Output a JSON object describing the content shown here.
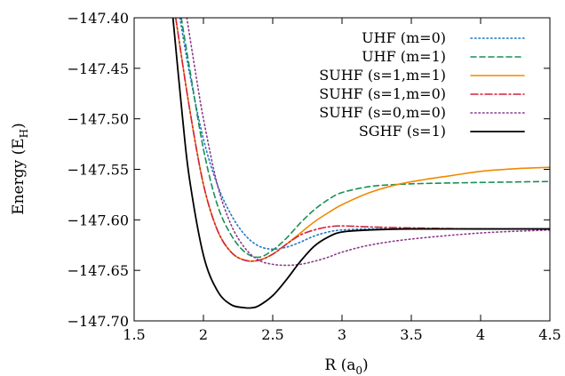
{
  "chart_data": {
    "type": "line",
    "xlabel": "R (a",
    "xlabel_sub": "0",
    "xlabel_tail": ")",
    "ylabel": "Energy (E",
    "ylabel_sub": "H",
    "ylabel_tail": ")",
    "xlim": [
      1.5,
      4.5
    ],
    "ylim": [
      -147.7,
      -147.4
    ],
    "x_ticks": [
      1.5,
      2,
      2.5,
      3,
      3.5,
      4,
      4.5
    ],
    "x_tick_labels": [
      "1.5",
      "2",
      "2.5",
      "3",
      "3.5",
      "4",
      "4.5"
    ],
    "y_ticks": [
      -147.7,
      -147.65,
      -147.6,
      -147.55,
      -147.5,
      -147.45,
      -147.4
    ],
    "y_tick_labels": [
      "−147.70",
      "−147.65",
      "−147.60",
      "−147.55",
      "−147.50",
      "−147.45",
      "−147.40"
    ],
    "grid": false,
    "legend_position": "top-right",
    "series": [
      {
        "name": "UHF (m=0)",
        "color": "#1f77c8",
        "dash": "dotted",
        "x": [
          1.83,
          1.9,
          2.0,
          2.1,
          2.2,
          2.3,
          2.4,
          2.5,
          2.6,
          2.7,
          2.8,
          2.9,
          3.0,
          3.2,
          3.5,
          4.0,
          4.5
        ],
        "y": [
          -147.4,
          -147.455,
          -147.52,
          -147.565,
          -147.595,
          -147.615,
          -147.626,
          -147.629,
          -147.627,
          -147.622,
          -147.616,
          -147.612,
          -147.61,
          -147.609,
          -147.609,
          -147.609,
          -147.609
        ]
      },
      {
        "name": "UHF (m=1)",
        "color": "#1a8f55",
        "dash": "dashed",
        "x": [
          1.84,
          1.9,
          2.0,
          2.1,
          2.2,
          2.3,
          2.4,
          2.5,
          2.6,
          2.7,
          2.8,
          2.9,
          3.0,
          3.2,
          3.4,
          3.6,
          4.0,
          4.5
        ],
        "y": [
          -147.4,
          -147.45,
          -147.53,
          -147.585,
          -147.615,
          -147.632,
          -147.637,
          -147.63,
          -147.618,
          -147.603,
          -147.59,
          -147.58,
          -147.573,
          -147.567,
          -147.565,
          -147.564,
          -147.563,
          -147.562
        ]
      },
      {
        "name": "SUHF (s=1,m=1)",
        "color": "#f08a00",
        "dash": "solid",
        "x": [
          1.8,
          1.9,
          2.0,
          2.1,
          2.2,
          2.3,
          2.4,
          2.5,
          2.6,
          2.7,
          2.8,
          2.9,
          3.0,
          3.2,
          3.4,
          3.6,
          3.8,
          4.0,
          4.3,
          4.5
        ],
        "y": [
          -147.4,
          -147.49,
          -147.565,
          -147.61,
          -147.632,
          -147.64,
          -147.64,
          -147.634,
          -147.624,
          -147.613,
          -147.602,
          -147.593,
          -147.585,
          -147.573,
          -147.565,
          -147.56,
          -147.556,
          -147.552,
          -147.549,
          -147.548
        ]
      },
      {
        "name": "SUHF (s=1,m=0)",
        "color": "#d1223f",
        "dash": "dashdot",
        "x": [
          1.8,
          1.9,
          2.0,
          2.1,
          2.2,
          2.3,
          2.4,
          2.5,
          2.6,
          2.7,
          2.8,
          2.9,
          3.0,
          3.2,
          3.5,
          4.0,
          4.5
        ],
        "y": [
          -147.4,
          -147.49,
          -147.565,
          -147.61,
          -147.632,
          -147.64,
          -147.64,
          -147.634,
          -147.624,
          -147.615,
          -147.61,
          -147.607,
          -147.606,
          -147.607,
          -147.608,
          -147.609,
          -147.609
        ]
      },
      {
        "name": "SUHF (s=0,m=0)",
        "color": "#8a3a8a",
        "dash": "dotted",
        "x": [
          1.88,
          1.95,
          2.0,
          2.1,
          2.2,
          2.3,
          2.4,
          2.5,
          2.6,
          2.7,
          2.8,
          2.9,
          3.0,
          3.2,
          3.5,
          4.0,
          4.5
        ],
        "y": [
          -147.4,
          -147.46,
          -147.5,
          -147.565,
          -147.605,
          -147.628,
          -147.64,
          -147.644,
          -147.645,
          -147.644,
          -147.641,
          -147.637,
          -147.632,
          -147.625,
          -147.619,
          -147.613,
          -147.61
        ]
      },
      {
        "name": "SGHF (s=1)",
        "color": "#000000",
        "dash": "solid",
        "x": [
          1.78,
          1.85,
          1.9,
          2.0,
          2.1,
          2.2,
          2.3,
          2.35,
          2.4,
          2.5,
          2.6,
          2.7,
          2.8,
          2.9,
          3.0,
          3.2,
          3.5,
          4.0,
          4.5
        ],
        "y": [
          -147.4,
          -147.5,
          -147.56,
          -147.635,
          -147.67,
          -147.684,
          -147.687,
          -147.687,
          -147.685,
          -147.675,
          -147.659,
          -147.641,
          -147.626,
          -147.617,
          -147.612,
          -147.61,
          -147.609,
          -147.609,
          -147.609
        ]
      }
    ]
  }
}
